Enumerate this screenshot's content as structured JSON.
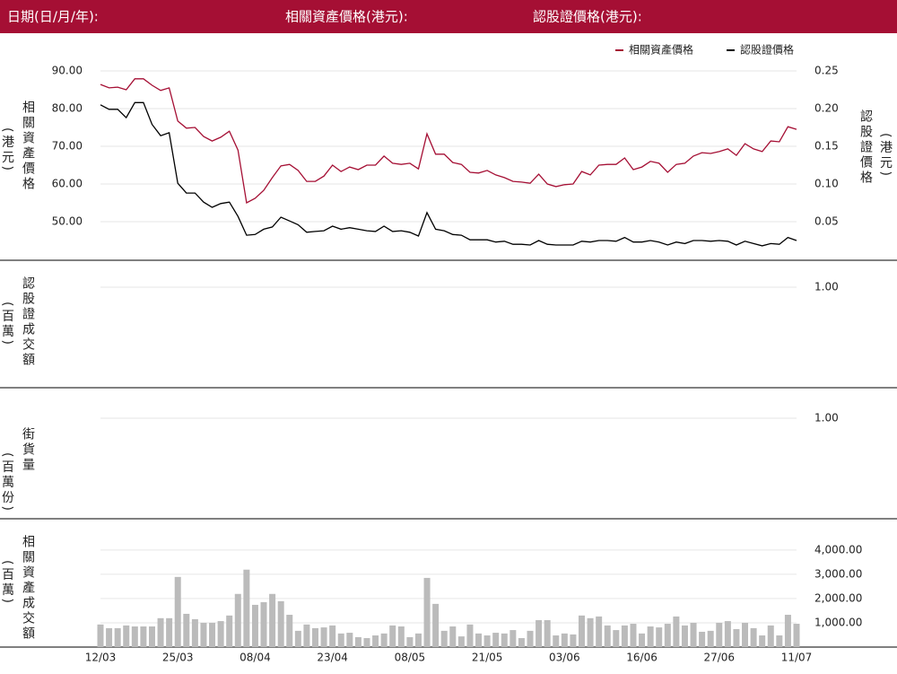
{
  "header": {
    "date_label": "日期(日/月/年):",
    "price_label": "相關資產價格(港元):",
    "warrant_label": "認股證價格(港元):"
  },
  "chart_data": [
    {
      "type": "line",
      "ylabel": "相關資產價格",
      "ylabel_unit": "(港元)",
      "y2label": "認股證價格",
      "y2label_unit": "(港元)",
      "legend": "top-right",
      "grid": true,
      "ylim": [
        42,
        92
      ],
      "yticks": [
        {
          "value": 90,
          "label": "90.00"
        },
        {
          "value": 80,
          "label": "80.00"
        },
        {
          "value": 70,
          "label": "70.00"
        },
        {
          "value": 60,
          "label": "60.00"
        },
        {
          "value": 50,
          "label": "50.00"
        }
      ],
      "y2lim": [
        0.01,
        0.26
      ],
      "y2ticks": [
        {
          "value": 0.25,
          "label": "0.25"
        },
        {
          "value": 0.2,
          "label": "0.20"
        },
        {
          "value": 0.15,
          "label": "0.15"
        },
        {
          "value": 0.1,
          "label": "0.10"
        },
        {
          "value": 0.05,
          "label": "0.05"
        }
      ],
      "series": [
        {
          "name": "相關資產價格",
          "color": "#a50f34",
          "values": [
            86.4,
            85.5,
            85.7,
            85.0,
            87.9,
            87.9,
            86.2,
            84.8,
            85.5,
            76.7,
            74.8,
            75.0,
            72.6,
            71.4,
            72.4,
            74.0,
            69.0,
            55.0,
            56.2,
            58.3,
            61.7,
            64.8,
            65.2,
            63.6,
            60.7,
            60.7,
            62.1,
            65.0,
            63.3,
            64.5,
            63.8,
            65.0,
            65.0,
            67.4,
            65.5,
            65.2,
            65.5,
            64.0,
            73.3,
            67.9,
            67.9,
            65.7,
            65.2,
            63.1,
            62.9,
            63.6,
            62.4,
            61.7,
            60.7,
            60.5,
            60.2,
            62.6,
            60.0,
            59.3,
            59.8,
            60.0,
            63.3,
            62.4,
            65.0,
            65.2,
            65.2,
            66.9,
            63.8,
            64.5,
            66.0,
            65.5,
            63.1,
            65.2,
            65.5,
            67.4,
            68.3,
            68.1,
            68.6,
            69.3,
            67.6,
            70.7,
            69.3,
            68.6,
            71.4,
            71.2,
            75.2,
            74.5
          ]
        },
        {
          "name": "認股證價格",
          "color": "#000000",
          "axis": "y2",
          "values": [
            0.205,
            0.199,
            0.199,
            0.188,
            0.208,
            0.208,
            0.179,
            0.164,
            0.168,
            0.101,
            0.088,
            0.088,
            0.076,
            0.069,
            0.074,
            0.076,
            0.057,
            0.032,
            0.033,
            0.04,
            0.043,
            0.056,
            0.051,
            0.046,
            0.036,
            0.037,
            0.038,
            0.044,
            0.04,
            0.042,
            0.04,
            0.038,
            0.037,
            0.044,
            0.037,
            0.038,
            0.036,
            0.031,
            0.062,
            0.04,
            0.038,
            0.033,
            0.032,
            0.026,
            0.026,
            0.026,
            0.023,
            0.024,
            0.02,
            0.02,
            0.019,
            0.025,
            0.02,
            0.019,
            0.019,
            0.019,
            0.024,
            0.023,
            0.025,
            0.025,
            0.024,
            0.029,
            0.023,
            0.023,
            0.025,
            0.023,
            0.019,
            0.023,
            0.021,
            0.025,
            0.025,
            0.024,
            0.025,
            0.024,
            0.019,
            0.024,
            0.021,
            0.018,
            0.021,
            0.02,
            0.029,
            0.025
          ]
        }
      ]
    },
    {
      "type": "line",
      "ylabel": "認股證成交額",
      "ylabel_unit": "(百萬)",
      "grid": true,
      "ylim": [
        0,
        1.2
      ],
      "yticks": [
        {
          "value": 1,
          "label": "1.00"
        }
      ]
    },
    {
      "type": "line",
      "ylabel": "街貨量",
      "ylabel_unit": "(百萬份)",
      "grid": true,
      "ylim": [
        0,
        1.2
      ],
      "yticks": [
        {
          "value": 1,
          "label": "1.00"
        }
      ]
    },
    {
      "type": "bar",
      "ylabel": "相關資產成交額",
      "ylabel_unit": "(百萬)",
      "grid": true,
      "color": "#bbbbbb",
      "ylim": [
        0,
        4400
      ],
      "yticks": [
        {
          "value": 4000,
          "label": "4,000.00"
        },
        {
          "value": 3000,
          "label": "3,000.00"
        },
        {
          "value": 2000,
          "label": "2,000.00"
        },
        {
          "value": 1000,
          "label": "1,000.00"
        }
      ],
      "categories": [
        "12/03",
        null,
        null,
        null,
        null,
        null,
        null,
        null,
        null,
        "25/03",
        null,
        null,
        null,
        null,
        null,
        null,
        null,
        null,
        "08/04",
        null,
        null,
        null,
        null,
        null,
        null,
        null,
        null,
        "23/04",
        null,
        null,
        null,
        null,
        null,
        null,
        null,
        null,
        "08/05",
        null,
        null,
        null,
        null,
        null,
        null,
        null,
        null,
        "21/05",
        null,
        null,
        null,
        null,
        null,
        null,
        null,
        null,
        "03/06",
        null,
        null,
        null,
        null,
        null,
        null,
        null,
        null,
        "16/06",
        null,
        null,
        null,
        null,
        null,
        null,
        null,
        null,
        "27/06",
        null,
        null,
        null,
        null,
        null,
        null,
        null,
        null,
        "11/07"
      ],
      "values": [
        930,
        780,
        780,
        890,
        850,
        850,
        850,
        1190,
        1190,
        2890,
        1370,
        1150,
        1000,
        1000,
        1070,
        1300,
        2190,
        3190,
        1740,
        1850,
        2190,
        1890,
        1330,
        670,
        930,
        780,
        810,
        890,
        560,
        590,
        410,
        370,
        480,
        560,
        890,
        850,
        410,
        560,
        2850,
        1780,
        670,
        850,
        440,
        930,
        560,
        480,
        590,
        560,
        700,
        370,
        670,
        1110,
        1110,
        480,
        560,
        520,
        1300,
        1190,
        1260,
        890,
        700,
        890,
        960,
        560,
        850,
        810,
        960,
        1260,
        890,
        1000,
        630,
        670,
        1000,
        1070,
        740,
        1000,
        780,
        480,
        890,
        480,
        1330,
        960
      ]
    }
  ]
}
